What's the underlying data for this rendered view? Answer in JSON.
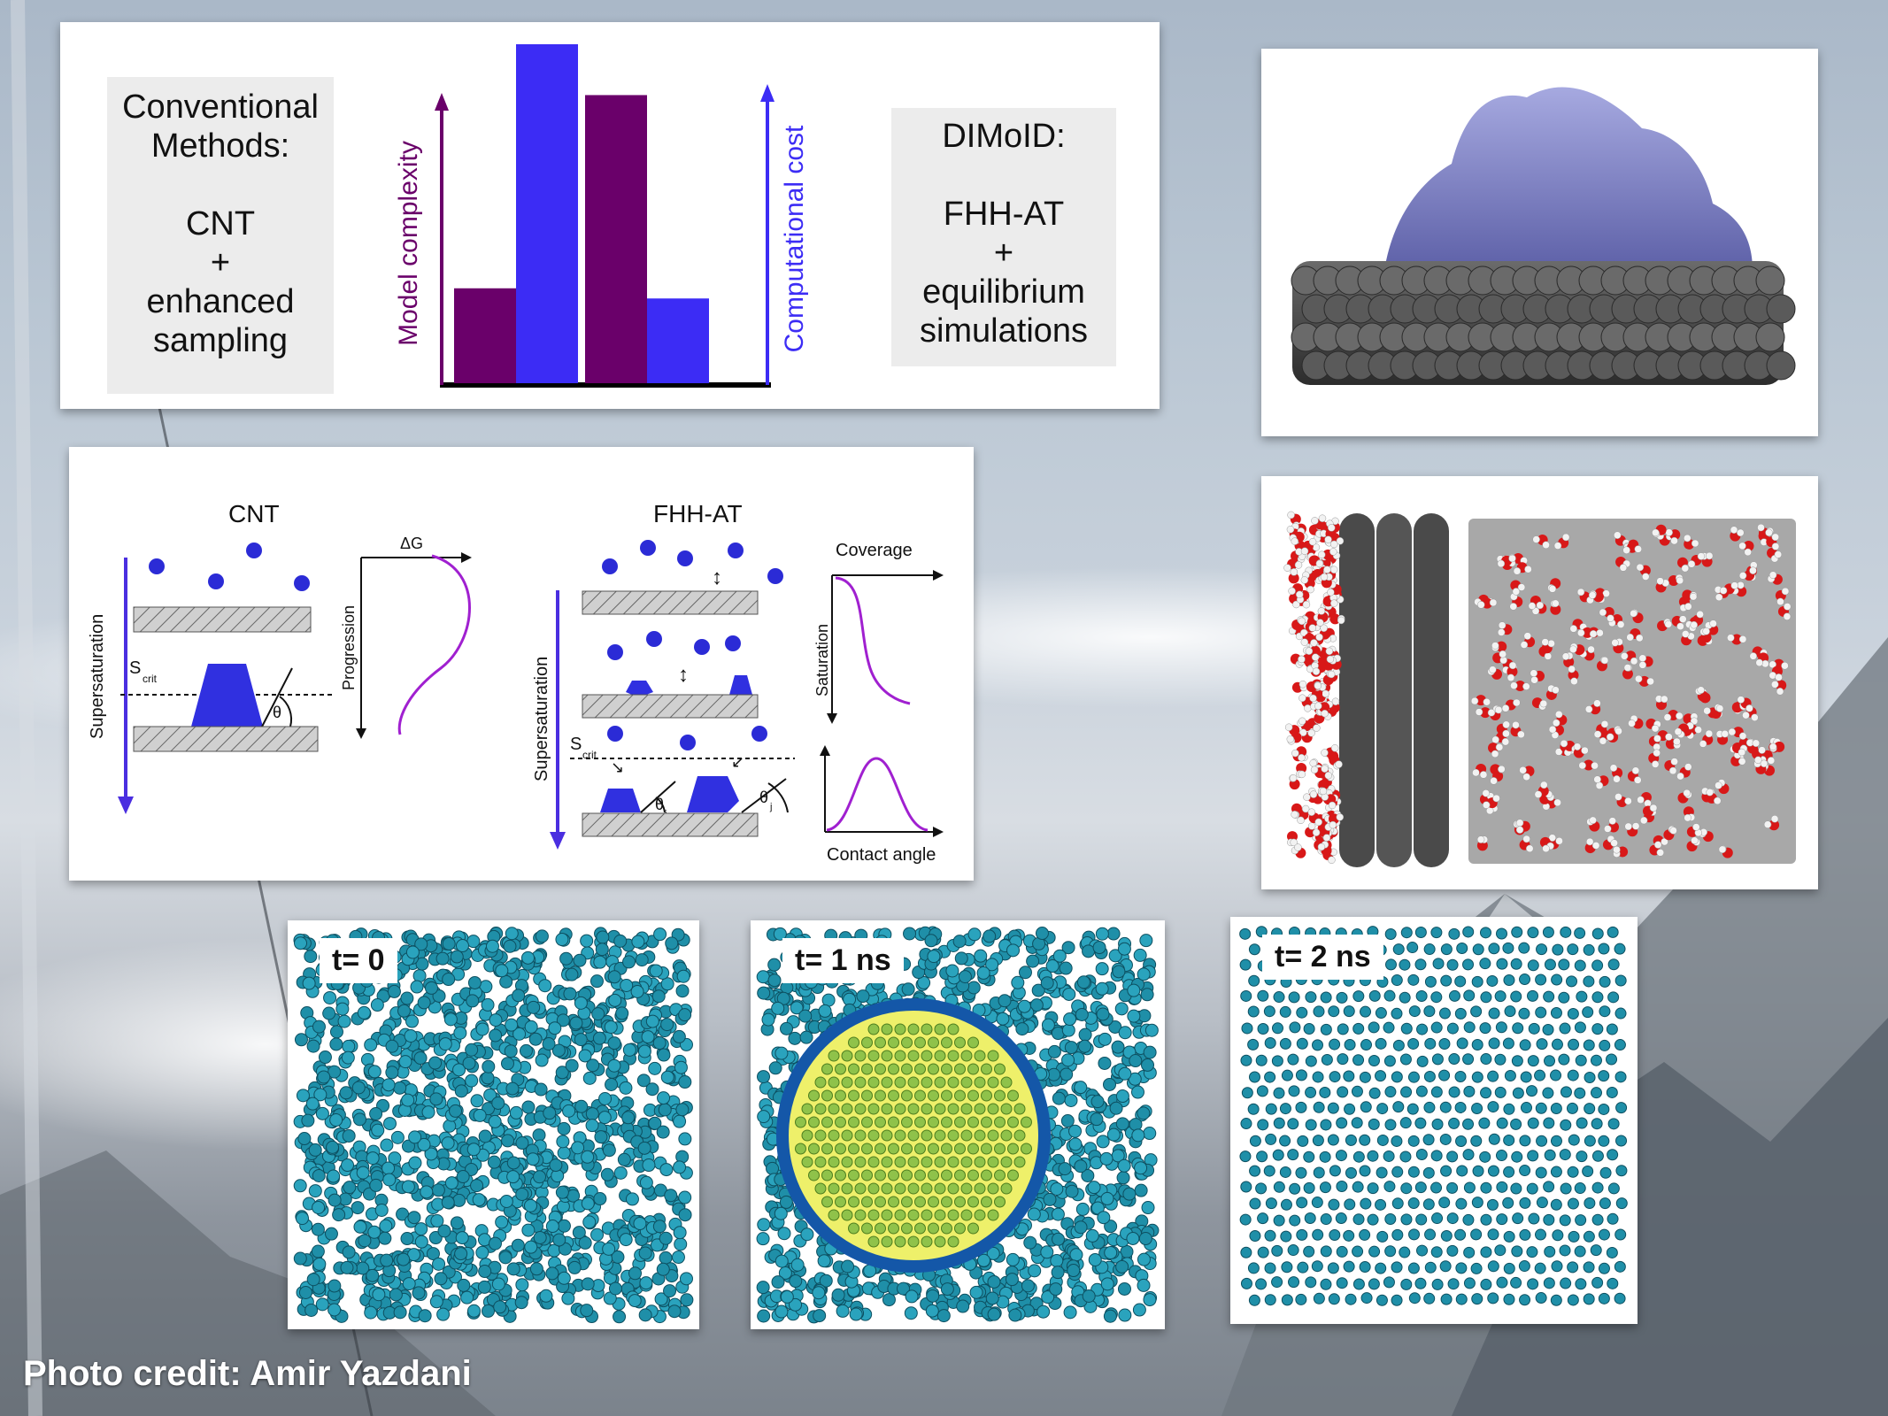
{
  "header_panel": {
    "conventional": [
      "Conventional",
      "Methods:",
      "",
      "CNT",
      "+",
      "enhanced",
      "sampling"
    ],
    "dimold": [
      "DIMoID:",
      "",
      "FHH-AT",
      "+",
      "equilibrium",
      "simulations"
    ],
    "left_axis_label": "Model complexity",
    "right_axis_label": "Computational cost"
  },
  "chart_data": {
    "type": "bar",
    "categories": [
      "Conventional Methods",
      "DIMoID"
    ],
    "series": [
      {
        "name": "Model complexity",
        "color": "#6a006a",
        "values": [
          28,
          85
        ]
      },
      {
        "name": "Computational cost",
        "color": "#3c2cf5",
        "values": [
          100,
          25
        ]
      }
    ],
    "ylim": [
      0,
      100
    ]
  },
  "schematic": {
    "cnt_title": "CNT",
    "fhh_title": "FHH-AT",
    "supersaturation": "Supersaturation",
    "scrit_S": "S",
    "scrit_sub": "crit",
    "theta": "θ",
    "theta_i": "θ",
    "theta_i_sub": "i",
    "theta_j": "θ",
    "theta_j_sub": "j",
    "progression": "Progression",
    "delta_g": "ΔG",
    "coverage": "Coverage",
    "saturation": "Saturation",
    "contact_angle": "Contact angle"
  },
  "snapshots": [
    {
      "label": "t= 0"
    },
    {
      "label": "t= 1 ns"
    },
    {
      "label": "t= 2 ns"
    }
  ],
  "credit": "Photo credit: Amir Yazdani",
  "colors": {
    "purple": "#6a006a",
    "blue": "#3c2cf5",
    "molecule_blue": "#2b2bd6",
    "magenta": "#a020d0",
    "teal": "#1f8fa8",
    "ice_blob": "#7e81c4"
  }
}
